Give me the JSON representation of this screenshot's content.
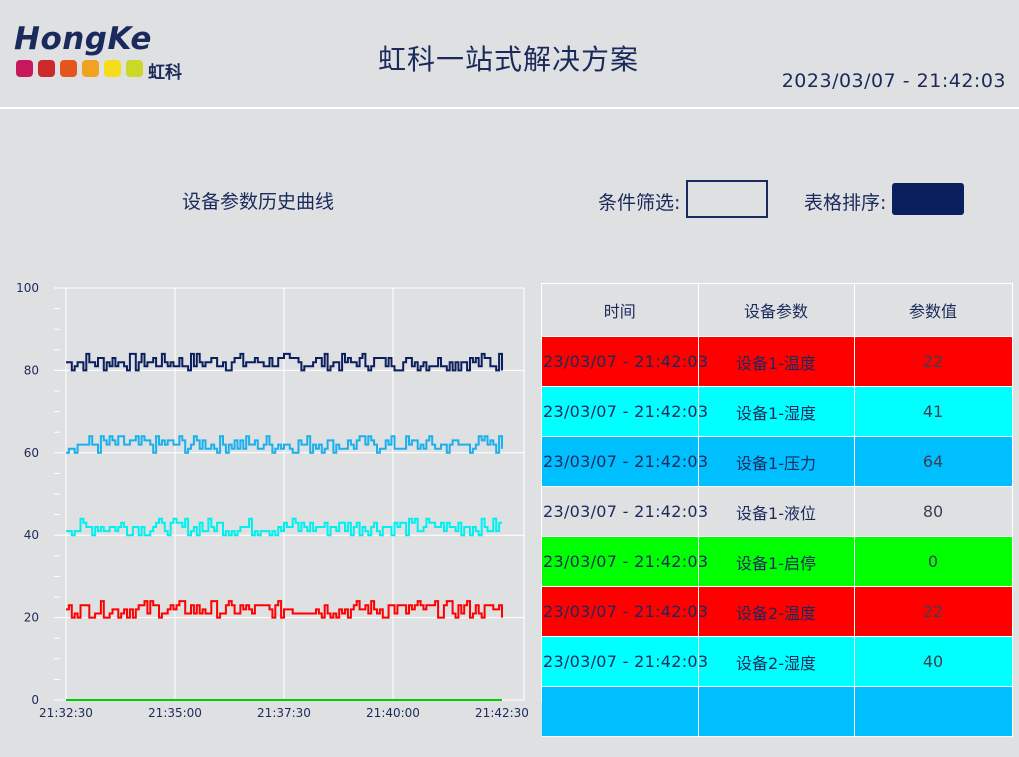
{
  "header": {
    "logo_text": "HongKe",
    "logo_cn": "虹科",
    "logo_colors": [
      "#c8185c",
      "#cc2a2a",
      "#e2561e",
      "#f2a21e",
      "#f6dd1c",
      "#cbd827"
    ],
    "title": "虹科一站式解决方案",
    "datetime": "2023/03/07 - 21:42:03"
  },
  "controls": {
    "chart_title": "设备参数历史曲线",
    "filter_label": "条件筛选:",
    "filter_value": "",
    "sort_label": "表格排序:"
  },
  "colors": {
    "background": "#dfe0e2",
    "text": "#1b2a5c",
    "accent_dark": "#0b1f5e",
    "temperature": "#ff0000",
    "humidity": "#00ffff",
    "pressure": "#00bfff",
    "level": "#dfe0e2",
    "run_stop": "#00ff00"
  },
  "chart_data": {
    "type": "line",
    "ylim": [
      0,
      100
    ],
    "y_ticks": [
      "0",
      "20",
      "40",
      "60",
      "80",
      "100"
    ],
    "x_ticks": [
      "21:32:30",
      "21:35:00",
      "21:37:30",
      "21:40:00",
      "21:42:30"
    ],
    "x_range": [
      "21:32:30",
      "21:42:30"
    ],
    "grid": true,
    "series": [
      {
        "color": "#0b1f5e",
        "mean": 82,
        "amplitude": 2
      },
      {
        "color": "#1ab0ee",
        "mean": 62,
        "amplitude": 2
      },
      {
        "color": "#00f0f0",
        "mean": 42,
        "amplitude": 2
      },
      {
        "color": "#ff0000",
        "mean": 22,
        "amplitude": 2
      },
      {
        "color": "#00cc00",
        "mean": 0,
        "amplitude": 0
      }
    ]
  },
  "table": {
    "headers": [
      "时间",
      "设备参数",
      "参数值"
    ],
    "rows": [
      {
        "time": "23/03/07 - 21:42:03",
        "param": "设备1-温度",
        "value": "22",
        "bg": "#ff0000"
      },
      {
        "time": "23/03/07 - 21:42:03",
        "param": "设备1-湿度",
        "value": "41",
        "bg": "#00ffff"
      },
      {
        "time": "23/03/07 - 21:42:03",
        "param": "设备1-压力",
        "value": "64",
        "bg": "#00bfff"
      },
      {
        "time": "23/03/07 - 21:42:03",
        "param": "设备1-液位",
        "value": "80",
        "bg": "#dfe0e2"
      },
      {
        "time": "23/03/07 - 21:42:03",
        "param": "设备1-启停",
        "value": "0",
        "bg": "#00ff00"
      },
      {
        "time": "23/03/07 - 21:42:03",
        "param": "设备2-温度",
        "value": "22",
        "bg": "#ff0000"
      },
      {
        "time": "23/03/07 - 21:42:03",
        "param": "设备2-湿度",
        "value": "40",
        "bg": "#00ffff"
      },
      {
        "time": "",
        "param": "",
        "value": "",
        "bg": "#00bfff"
      }
    ]
  }
}
